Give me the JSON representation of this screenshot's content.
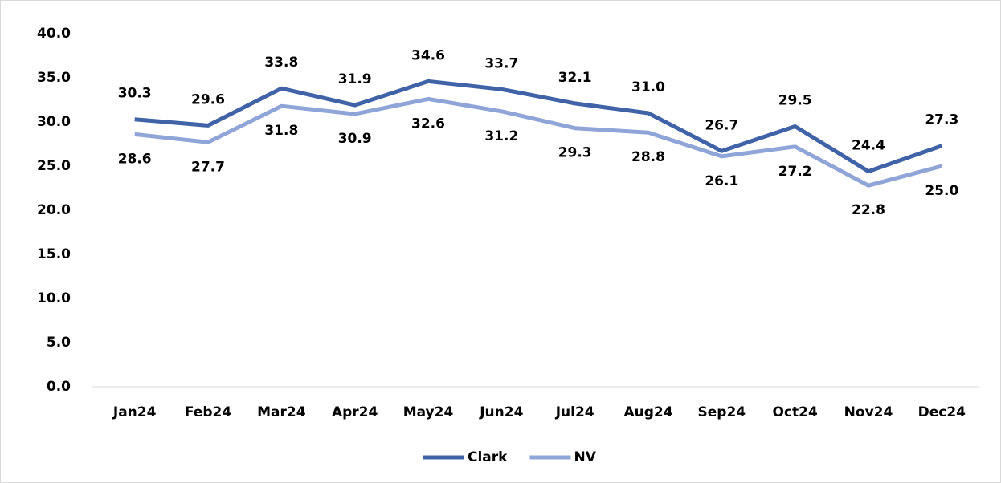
{
  "chart_data": {
    "type": "line",
    "categories": [
      "Jan24",
      "Feb24",
      "Mar24",
      "Apr24",
      "May24",
      "Jun24",
      "Jul24",
      "Aug24",
      "Sep24",
      "Oct24",
      "Nov24",
      "Dec24"
    ],
    "series": [
      {
        "name": "Clark",
        "color": "#4063a8",
        "values": [
          30.3,
          29.6,
          33.8,
          31.9,
          34.6,
          33.7,
          32.1,
          31.0,
          26.7,
          29.5,
          24.4,
          27.3
        ],
        "value_labels": [
          "30.3",
          "29.6",
          "33.8",
          "31.9",
          "34.6",
          "33.7",
          "32.1",
          "31.0",
          "26.7",
          "29.5",
          "24.4",
          "27.3"
        ]
      },
      {
        "name": "NV",
        "color": "#8fa5d8",
        "values": [
          28.6,
          27.7,
          31.8,
          30.9,
          32.6,
          31.2,
          29.3,
          28.8,
          26.1,
          27.2,
          22.8,
          25.0
        ],
        "value_labels": [
          "28.6",
          "27.7",
          "31.8",
          "30.9",
          "32.6",
          "31.2",
          "29.3",
          "28.8",
          "26.1",
          "27.2",
          "22.8",
          "25.0"
        ]
      }
    ],
    "ylim": [
      0,
      40
    ],
    "yticks": [
      {
        "value": 0,
        "label": "0.0"
      },
      {
        "value": 5,
        "label": "5.0"
      },
      {
        "value": 10,
        "label": "10.0"
      },
      {
        "value": 15,
        "label": "15.0"
      },
      {
        "value": 20,
        "label": "20.0"
      },
      {
        "value": 25,
        "label": "25.0"
      },
      {
        "value": 30,
        "label": "30.0"
      },
      {
        "value": 35,
        "label": "35.0"
      },
      {
        "value": 40,
        "label": "40.0"
      }
    ],
    "grid": false,
    "legend": "bottom"
  }
}
